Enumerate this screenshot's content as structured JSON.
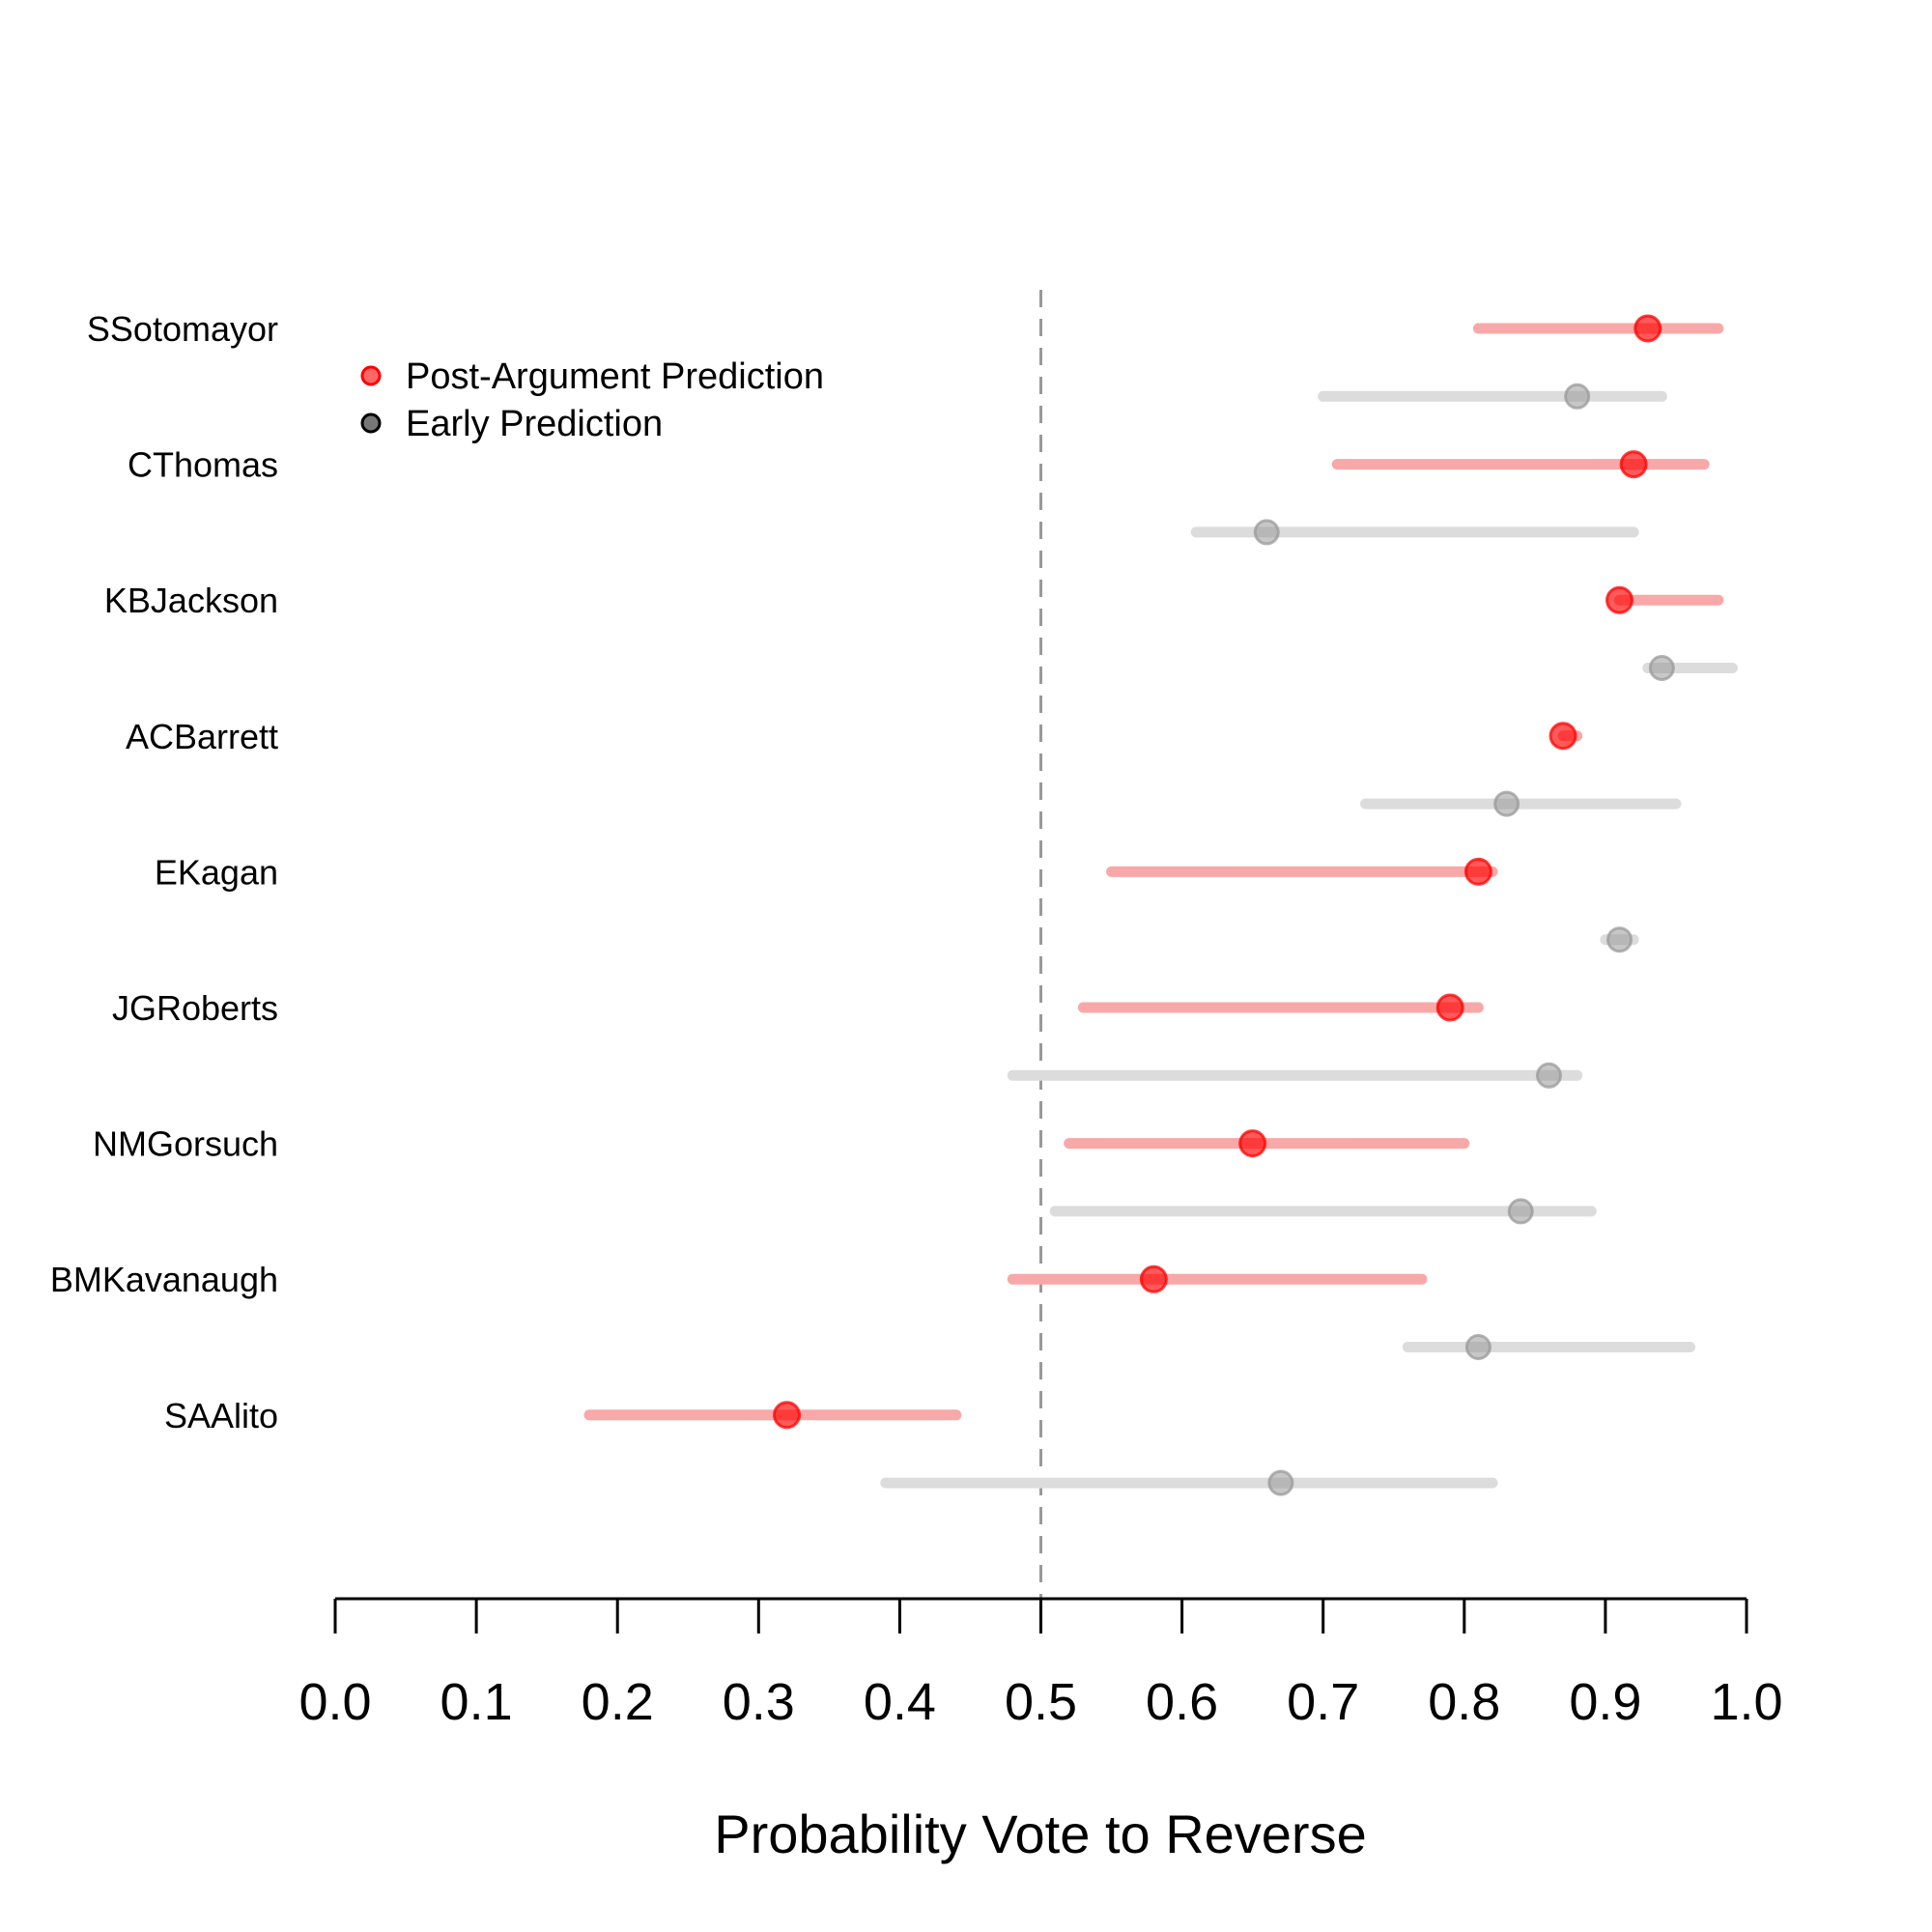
{
  "chart_data": {
    "type": "dot-interval",
    "xlabel": "Probability Vote to Reverse",
    "xlim": [
      0.0,
      1.0
    ],
    "xticks": [
      "0.0",
      "0.1",
      "0.2",
      "0.3",
      "0.4",
      "0.5",
      "0.6",
      "0.7",
      "0.8",
      "0.9",
      "1.0"
    ],
    "reference_line": 0.5,
    "legend": {
      "placement": "top-left",
      "entries": [
        {
          "label": "Post-Argument Prediction",
          "color": "#ff0000"
        },
        {
          "label": "Early Prediction",
          "color": "#555555"
        }
      ]
    },
    "colors": {
      "post": "#ff0000",
      "post_interval": "#f8a8a8",
      "early": "#999999",
      "early_interval": "#dcdcdc",
      "reference": "#999999",
      "axis": "#000000"
    },
    "justices": [
      {
        "name": "SSotomayor",
        "post": {
          "point": 0.93,
          "low": 0.81,
          "high": 0.98
        },
        "early": {
          "point": 0.88,
          "low": 0.7,
          "high": 0.94
        }
      },
      {
        "name": "CThomas",
        "post": {
          "point": 0.92,
          "low": 0.71,
          "high": 0.97
        },
        "early": {
          "point": 0.66,
          "low": 0.61,
          "high": 0.92
        }
      },
      {
        "name": "KBJackson",
        "post": {
          "point": 0.91,
          "low": 0.91,
          "high": 0.98
        },
        "early": {
          "point": 0.94,
          "low": 0.93,
          "high": 0.99
        }
      },
      {
        "name": "ACBarrett",
        "post": {
          "point": 0.87,
          "low": 0.87,
          "high": 0.88
        },
        "early": {
          "point": 0.83,
          "low": 0.73,
          "high": 0.95
        }
      },
      {
        "name": "EKagan",
        "post": {
          "point": 0.81,
          "low": 0.55,
          "high": 0.82
        },
        "early": {
          "point": 0.91,
          "low": 0.9,
          "high": 0.92
        }
      },
      {
        "name": "JGRoberts",
        "post": {
          "point": 0.79,
          "low": 0.53,
          "high": 0.81
        },
        "early": {
          "point": 0.86,
          "low": 0.48,
          "high": 0.88
        }
      },
      {
        "name": "NMGorsuch",
        "post": {
          "point": 0.65,
          "low": 0.52,
          "high": 0.8
        },
        "early": {
          "point": 0.84,
          "low": 0.51,
          "high": 0.89
        }
      },
      {
        "name": "BMKavanaugh",
        "post": {
          "point": 0.58,
          "low": 0.48,
          "high": 0.77
        },
        "early": {
          "point": 0.81,
          "low": 0.76,
          "high": 0.96
        }
      },
      {
        "name": "SAAlito",
        "post": {
          "point": 0.32,
          "low": 0.18,
          "high": 0.44
        },
        "early": {
          "point": 0.67,
          "low": 0.39,
          "high": 0.82
        }
      }
    ]
  }
}
